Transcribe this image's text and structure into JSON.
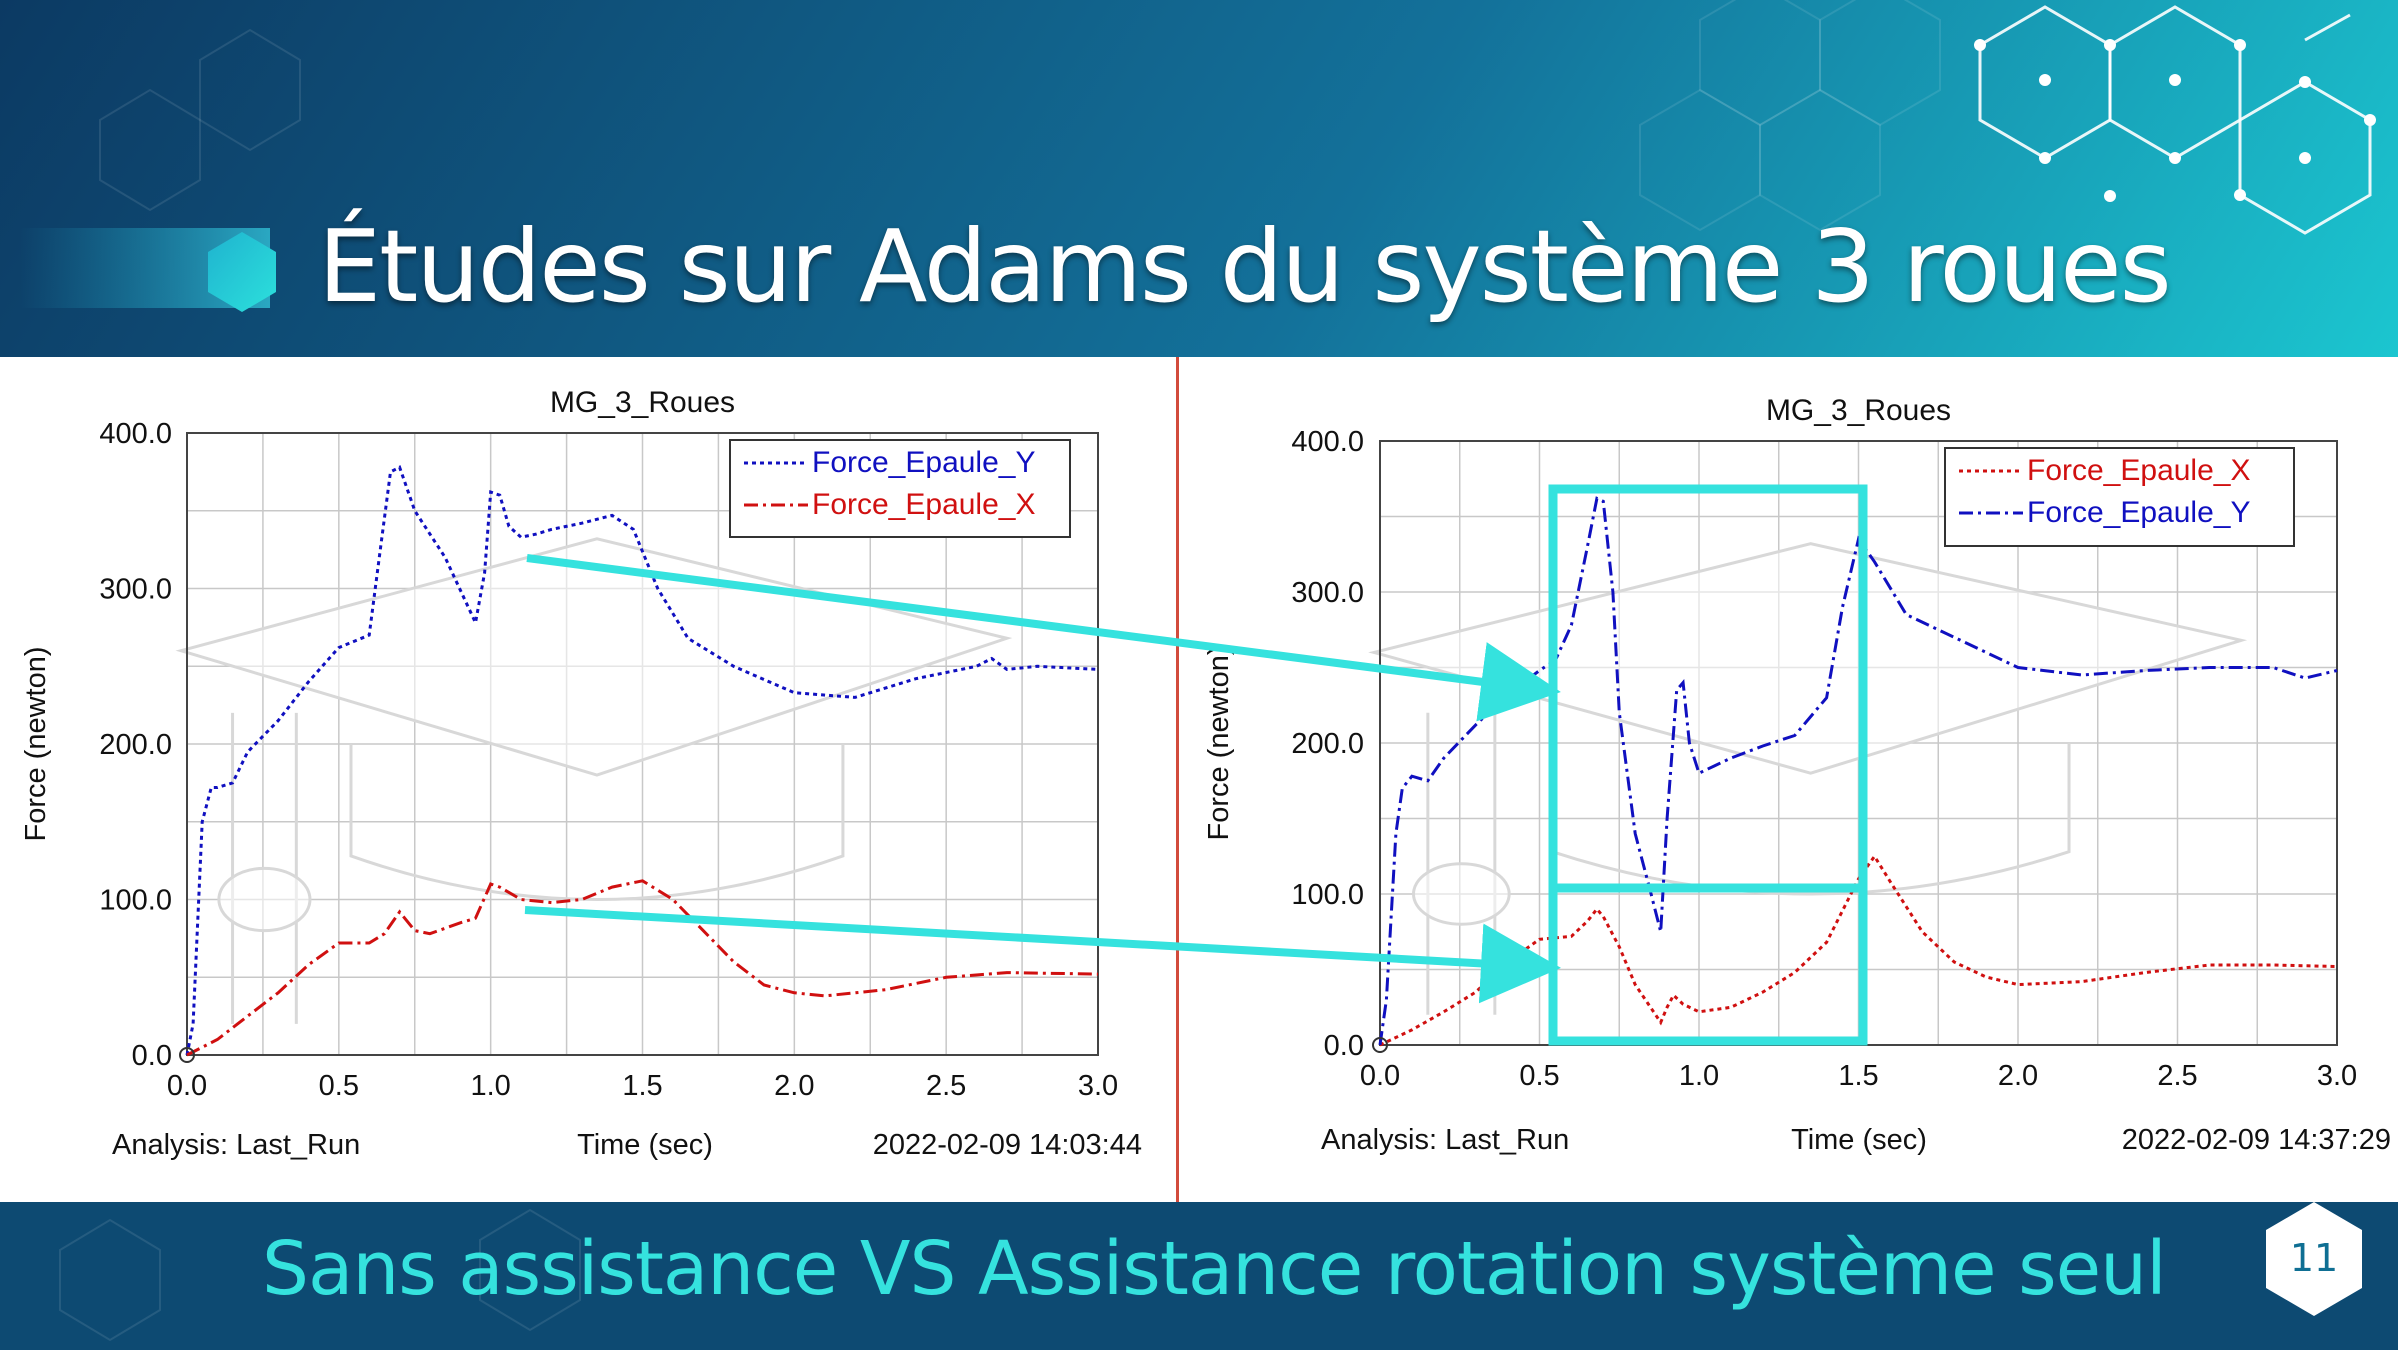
{
  "slide": {
    "title": "Études sur Adams du système 3 roues",
    "subtitle": "Sans assistance VS Assistance rotation système seul",
    "page_number": "11",
    "colors": {
      "background_dark": "#0c3f66",
      "background_light": "#1aa9c6",
      "accent": "#35e2de",
      "title": "#ffffff"
    }
  },
  "chart_data": [
    {
      "type": "line",
      "title": "MG_3_Roues",
      "xlabel": "Time (sec)",
      "ylabel": "Force (newton)",
      "xlim": [
        0,
        3
      ],
      "ylim": [
        0,
        400
      ],
      "x_ticks": [
        "0.0",
        "0.5",
        "1.0",
        "1.5",
        "2.0",
        "2.5",
        "3.0"
      ],
      "y_ticks": [
        "0.0",
        "100.0",
        "200.0",
        "300.0",
        "400.0"
      ],
      "grid": true,
      "legend_position": "top-right",
      "footer": {
        "analysis": "Analysis:  Last_Run",
        "timestamp": "2022-02-09 14:03:44"
      },
      "series": [
        {
          "name": "Force_Epaule_Y",
          "color": "#1010c0",
          "dash": "dotted",
          "x": [
            0,
            0.02,
            0.05,
            0.08,
            0.1,
            0.15,
            0.2,
            0.3,
            0.4,
            0.5,
            0.6,
            0.64,
            0.67,
            0.7,
            0.75,
            0.85,
            0.95,
            0.98,
            1.0,
            1.03,
            1.06,
            1.1,
            1.15,
            1.2,
            1.3,
            1.4,
            1.47,
            1.55,
            1.65,
            1.8,
            2.0,
            2.2,
            2.4,
            2.6,
            2.65,
            2.7,
            2.8,
            3.0
          ],
          "y": [
            0,
            20,
            150,
            172,
            172,
            175,
            195,
            215,
            240,
            262,
            270,
            330,
            375,
            378,
            350,
            320,
            278,
            310,
            362,
            360,
            340,
            333,
            335,
            338,
            342,
            347,
            338,
            300,
            268,
            250,
            233,
            230,
            242,
            250,
            255,
            248,
            250,
            248
          ]
        },
        {
          "name": "Force_Epaule_X",
          "color": "#d01010",
          "dash": "dashdot",
          "x": [
            0,
            0.1,
            0.2,
            0.3,
            0.4,
            0.5,
            0.6,
            0.65,
            0.7,
            0.75,
            0.8,
            0.9,
            0.95,
            1.0,
            1.03,
            1.1,
            1.2,
            1.3,
            1.4,
            1.5,
            1.6,
            1.7,
            1.8,
            1.9,
            2.0,
            2.1,
            2.3,
            2.5,
            2.7,
            3.0
          ],
          "y": [
            0,
            10,
            25,
            40,
            58,
            72,
            72,
            78,
            92,
            80,
            78,
            85,
            88,
            110,
            108,
            100,
            98,
            100,
            108,
            112,
            100,
            80,
            60,
            45,
            40,
            38,
            42,
            50,
            53,
            52
          ]
        }
      ]
    },
    {
      "type": "line",
      "title": "MG_3_Roues",
      "xlabel": "Time (sec)",
      "ylabel": "Force (newton)",
      "xlim": [
        0,
        3
      ],
      "ylim": [
        0,
        400
      ],
      "x_ticks": [
        "0.0",
        "0.5",
        "1.0",
        "1.5",
        "2.0",
        "2.5",
        "3.0"
      ],
      "y_ticks": [
        "0.0",
        "100.0",
        "200.0",
        "300.0",
        "400.0"
      ],
      "grid": true,
      "legend_position": "top-right",
      "footer": {
        "analysis": "Analysis:  Last_Run",
        "timestamp": "2022-02-09 14:37:29"
      },
      "series": [
        {
          "name": "Force_Epaule_X",
          "color": "#d01010",
          "dash": "dotted",
          "x": [
            0,
            0.1,
            0.2,
            0.3,
            0.4,
            0.5,
            0.6,
            0.65,
            0.68,
            0.7,
            0.75,
            0.8,
            0.88,
            0.9,
            0.92,
            0.95,
            1.0,
            1.1,
            1.2,
            1.3,
            1.4,
            1.5,
            1.55,
            1.6,
            1.7,
            1.8,
            1.9,
            2.0,
            2.2,
            2.4,
            2.6,
            2.8,
            3.0
          ],
          "y": [
            0,
            10,
            22,
            35,
            55,
            70,
            72,
            82,
            90,
            85,
            65,
            40,
            15,
            25,
            33,
            27,
            22,
            25,
            35,
            48,
            68,
            110,
            125,
            108,
            75,
            55,
            45,
            40,
            42,
            48,
            53,
            53,
            52
          ]
        },
        {
          "name": "Force_Epaule_Y",
          "color": "#1010c0",
          "dash": "dashdot",
          "x": [
            0,
            0.02,
            0.05,
            0.07,
            0.1,
            0.15,
            0.2,
            0.3,
            0.4,
            0.5,
            0.55,
            0.6,
            0.65,
            0.68,
            0.7,
            0.73,
            0.75,
            0.8,
            0.85,
            0.88,
            0.9,
            0.93,
            0.95,
            0.97,
            1.0,
            1.05,
            1.1,
            1.2,
            1.3,
            1.4,
            1.45,
            1.5,
            1.55,
            1.65,
            1.8,
            2.0,
            2.2,
            2.4,
            2.6,
            2.8,
            2.9,
            3.0
          ],
          "y": [
            0,
            30,
            140,
            170,
            178,
            175,
            190,
            212,
            232,
            248,
            255,
            278,
            330,
            362,
            360,
            300,
            220,
            140,
            100,
            75,
            150,
            235,
            240,
            200,
            180,
            185,
            190,
            198,
            205,
            230,
            290,
            335,
            320,
            285,
            270,
            250,
            245,
            248,
            250,
            250,
            243,
            248
          ]
        }
      ]
    }
  ]
}
